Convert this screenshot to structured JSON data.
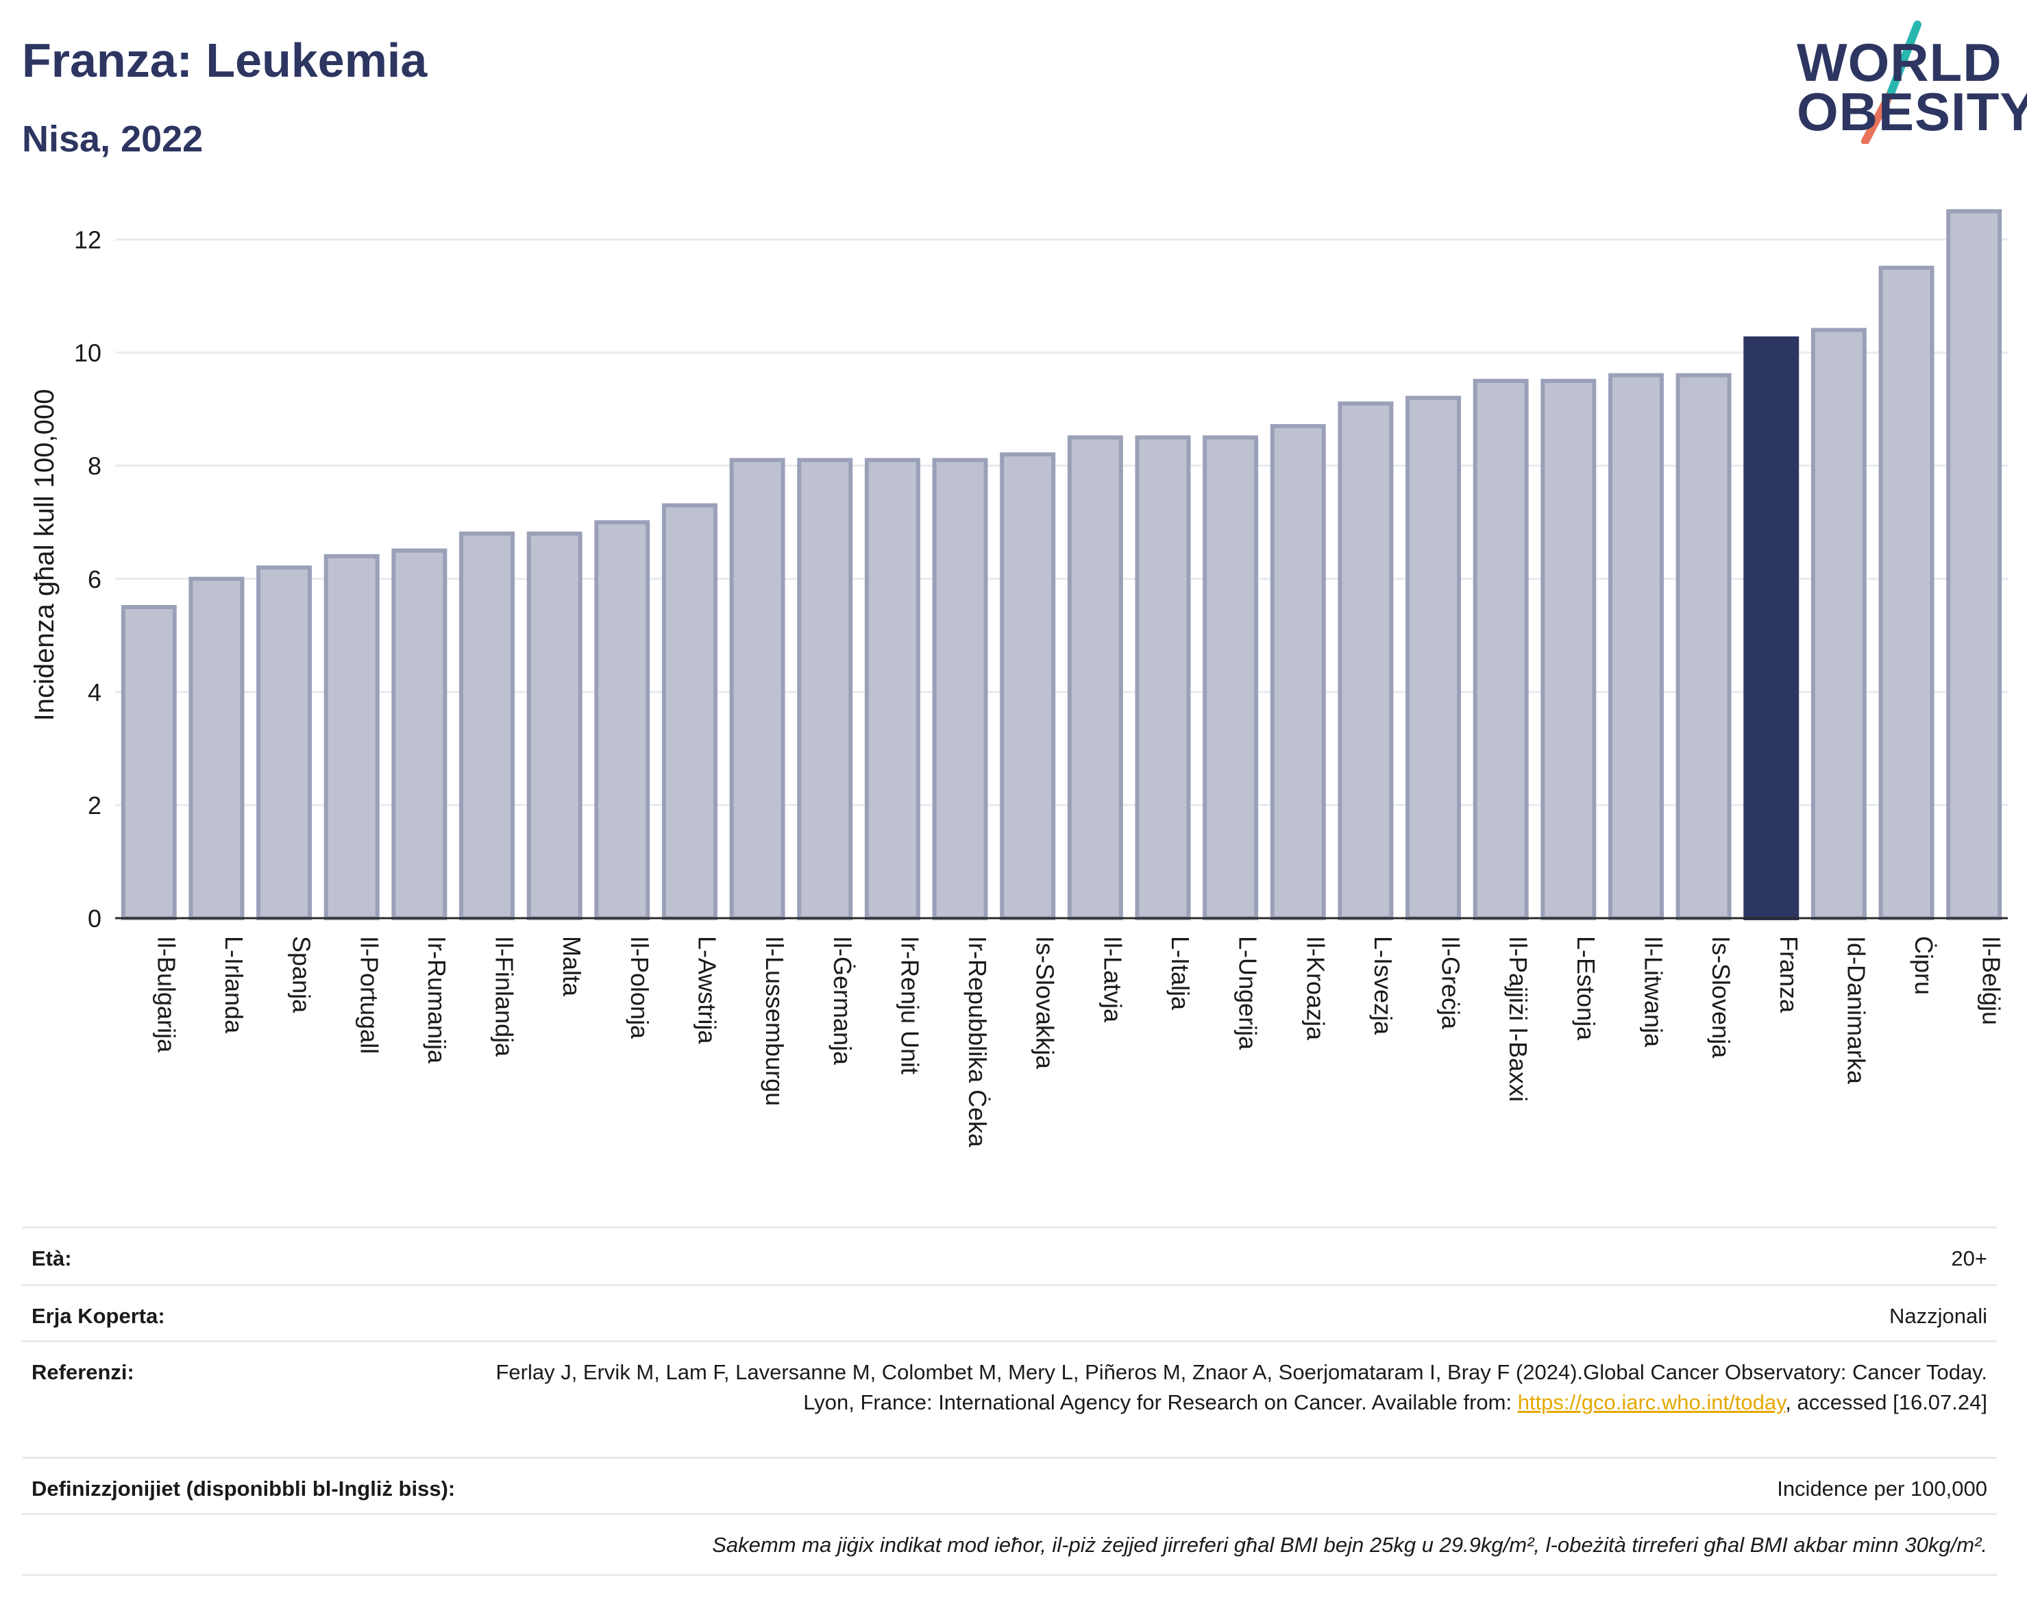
{
  "header": {
    "title": "Franza: Leukemia",
    "subtitle": "Nisa, 2022"
  },
  "logo": {
    "line1": "WORLD",
    "line2": "OBESITY",
    "colors": {
      "text": "#2d3561",
      "slash_top": "#2ab7b0",
      "slash_bottom": "#e8735a"
    }
  },
  "colors": {
    "bar": "#bec2d0",
    "bar_edge": "#9aa0b8",
    "highlight": "#2d3561",
    "grid": "#e8eaf0",
    "axis": "#2b2b2b"
  },
  "chart_data": {
    "type": "bar",
    "ylabel": "Incidenza għal kull 100,000",
    "ylim": [
      0,
      12.6
    ],
    "yticks": [
      0,
      2,
      4,
      6,
      8,
      10,
      12
    ],
    "grid": true,
    "highlight": "Franza",
    "categories": [
      "Il-Bulgarija",
      "L-Irlanda",
      "Spanja",
      "Il-Portugall",
      "Ir-Rumanija",
      "Il-Finlandja",
      "Malta",
      "Il-Polonja",
      "L-Awstrija",
      "Il-Lussemburgu",
      "Il-Ġermanja",
      "Ir-Renju Unit",
      "Ir-Repubblika Ċeka",
      "Is-Slovakkja",
      "Il-Latvja",
      "L-Italja",
      "L-Ungerija",
      "Il-Kroazja",
      "L-Isvezja",
      "Il-Greċja",
      "Il-Pajjiżi l-Baxxi",
      "L-Estonja",
      "Il-Litwanja",
      "Is-Slovenja",
      "Franza",
      "Id-Danimarka",
      "Ċipru",
      "Il-Belġju"
    ],
    "values": [
      5.5,
      6.0,
      6.2,
      6.4,
      6.5,
      6.8,
      6.8,
      7.0,
      7.3,
      8.1,
      8.1,
      8.1,
      8.1,
      8.2,
      8.5,
      8.5,
      8.5,
      8.7,
      9.1,
      9.2,
      9.5,
      9.5,
      9.6,
      9.6,
      10.25,
      10.4,
      11.5,
      12.5
    ]
  },
  "meta": {
    "age_label": "Età:",
    "age_value": "20+",
    "area_label": "Erja Koperta:",
    "area_value": "Nazzjonali",
    "ref_label": "Referenzi:",
    "ref_text_1": "Ferlay J, Ervik M, Lam F, Laversanne M, Colombet M, Mery L, Piñeros M, Znaor A, Soerjomataram I, Bray F (2024).Global Cancer Observatory: Cancer Today. Lyon, France: International Agency for Research on Cancer. Available from: ",
    "ref_link": "https://gco.iarc.who.int/today",
    "ref_text_2": ", accessed [16.07.24]",
    "def_label": "Definizzjonijiet (disponibbli bl-Ingliż biss):",
    "def_value": "Incidence per 100,000",
    "note": "Sakemm ma jiġix indikat mod ieħor, il-piż żejjed jirreferi għal BMI bejn 25kg u 29.9kg/m², l-obeżità tirreferi għal BMI akbar minn 30kg/m²."
  }
}
